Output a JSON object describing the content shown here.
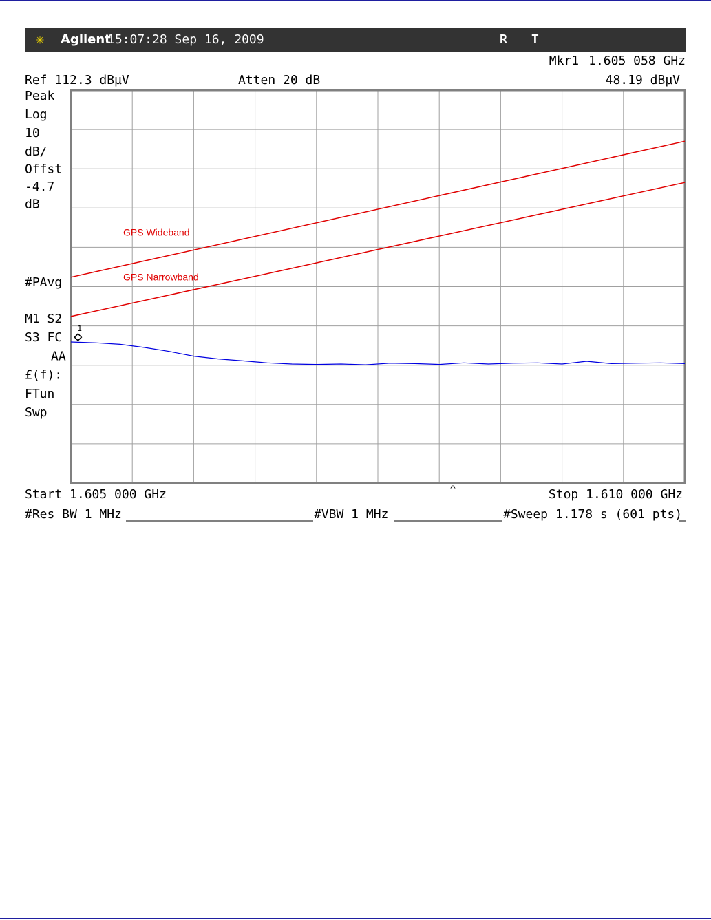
{
  "chart_data": {
    "type": "line",
    "header": {
      "brand": "Agilent",
      "timestamp": "15:07:28  Sep 16, 2009",
      "status_r": "R",
      "status_t": "T"
    },
    "marker": {
      "name": "Mkr1",
      "id": "1",
      "freq_label": "1.605 058 GHz",
      "x": 1.605058,
      "value_label": "48.19 dBµV",
      "y": 48.19
    },
    "ref_label": "Ref 112.3 dBµV",
    "atten_label": "Atten 20 dB",
    "left_panel_top": [
      "Peak",
      "Log"
    ],
    "div_db": 10,
    "left_panel_rest": [
      "dB/",
      "Offst",
      "-4.7",
      "dB"
    ],
    "left_panel_lower": [
      "#PAvg",
      "M1  S2",
      "S3  FC",
      "AA",
      "£(f):",
      "FTun",
      "Swp"
    ],
    "start_label": "Start 1.605 000 GHz",
    "stop_label": "Stop 1.610 000 GHz",
    "res_bw": "#Res BW 1 MHz",
    "vbw": "#VBW 1 MHz",
    "sweep": "#Sweep 1.178 s (601 pts)",
    "xlim": [
      1.605,
      1.61
    ],
    "ylim": [
      12.3,
      112.3
    ],
    "limit_lines": [
      {
        "name": "GPS Wideband",
        "color": "#e00000",
        "x": [
          1.605,
          1.61
        ],
        "values": [
          64.7,
          99.3
        ]
      },
      {
        "name": "GPS Narrowband",
        "color": "#e00000",
        "x": [
          1.605,
          1.61
        ],
        "values": [
          54.7,
          88.8
        ]
      }
    ],
    "series": [
      {
        "color": "#0000e0",
        "x": [
          1.605,
          1.6052,
          1.6054,
          1.6056,
          1.6058,
          1.606,
          1.6062,
          1.6064,
          1.6066,
          1.6068,
          1.607,
          1.6072,
          1.6074,
          1.6076,
          1.6078,
          1.608,
          1.6082,
          1.6084,
          1.6086,
          1.6088,
          1.609,
          1.6092,
          1.6094,
          1.6096,
          1.6098,
          1.61
        ],
        "values": [
          48.2,
          48.0,
          47.6,
          46.8,
          45.8,
          44.6,
          43.9,
          43.4,
          42.9,
          42.6,
          42.5,
          42.6,
          42.4,
          42.8,
          42.7,
          42.5,
          42.9,
          42.6,
          42.8,
          42.9,
          42.6,
          43.3,
          42.7,
          42.8,
          42.9,
          42.7
        ]
      }
    ]
  }
}
